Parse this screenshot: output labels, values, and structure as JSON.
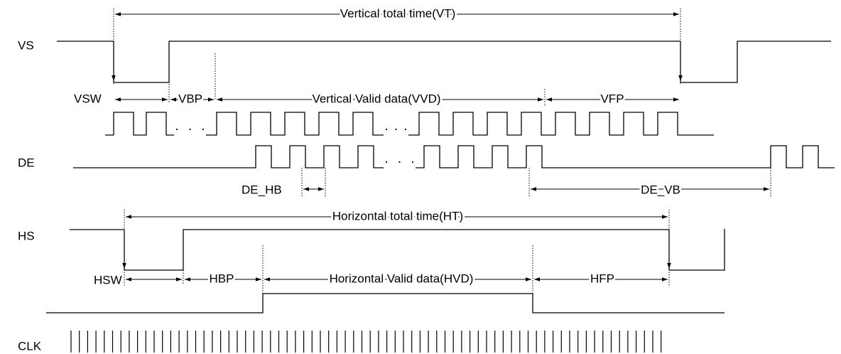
{
  "signals": {
    "vs": "VS",
    "de": "DE",
    "hs": "HS",
    "clk": "CLK"
  },
  "annotations": {
    "vt": "Vertical total time(VT)",
    "vsw": "VSW",
    "vbp": "VBP",
    "vvd": "Vertical Valid data(VVD)",
    "vfp": "VFP",
    "de_hb": "DE_HB",
    "de_vb": "DE_VB",
    "ht": "Horizontal total time(HT)",
    "hsw": "HSW",
    "hbp": "HBP",
    "hvd": "Horizontal Valid data(HVD)",
    "hfp": "HFP"
  }
}
